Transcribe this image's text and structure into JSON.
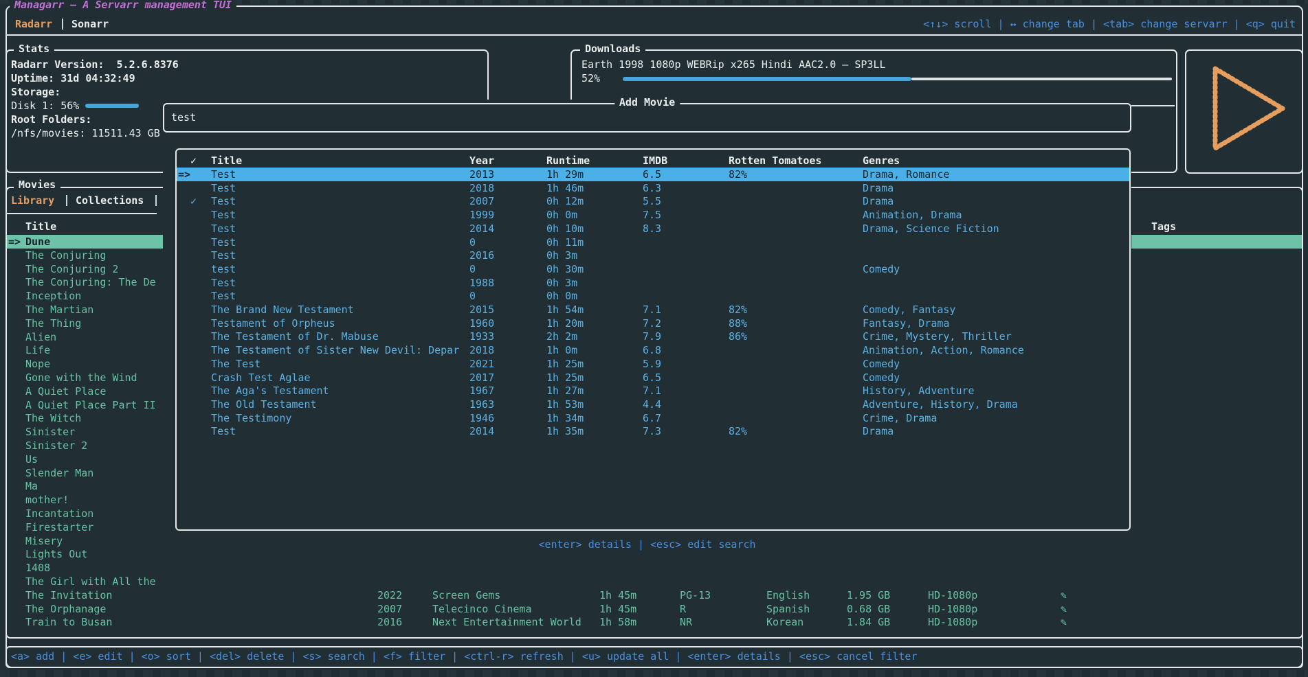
{
  "app": {
    "title": "Managarr — A Servarr management TUI",
    "tabs": {
      "radarr": "Radarr",
      "sonarr": "Sonarr"
    },
    "top_hints": "<↑↓> scroll | ↔ change tab | <tab> change servarr | <q> quit"
  },
  "stats": {
    "title": "Stats",
    "version": "Radarr Version:  5.2.6.8376",
    "uptime": "Uptime: 31d 04:32:49",
    "storage_label": "Storage:",
    "disk_label": "Disk 1: 56%",
    "disk_percent": 56,
    "root_folders_label": "Root Folders:",
    "root_folder": "/nfs/movies: 11511.43 GB"
  },
  "downloads": {
    "title": "Downloads",
    "item": "Earth 1998 1080p WEBRip x265 Hindi AAC2.0 – SP3LL",
    "percent_label": "52%",
    "percent": 52
  },
  "movies_panel": {
    "title": "Movies",
    "tabs": {
      "library": "Library",
      "collections": "Collections"
    },
    "header_title": "Title",
    "header_tags": "Tags",
    "selected_marker": "=>",
    "rows": [
      {
        "title": "Dune",
        "selected": true
      },
      {
        "title": "The Conjuring"
      },
      {
        "title": "The Conjuring 2"
      },
      {
        "title": "The Conjuring: The De"
      },
      {
        "title": "Inception"
      },
      {
        "title": "The Martian"
      },
      {
        "title": "The Thing"
      },
      {
        "title": "Alien"
      },
      {
        "title": "Life"
      },
      {
        "title": "Nope"
      },
      {
        "title": "Gone with the Wind"
      },
      {
        "title": "A Quiet Place"
      },
      {
        "title": "A Quiet Place Part II"
      },
      {
        "title": "The Witch"
      },
      {
        "title": "Sinister"
      },
      {
        "title": "Sinister 2"
      },
      {
        "title": "Us"
      },
      {
        "title": "Slender Man"
      },
      {
        "title": "Ma"
      },
      {
        "title": "mother!"
      },
      {
        "title": "Incantation"
      },
      {
        "title": "Firestarter"
      },
      {
        "title": "Misery"
      },
      {
        "title": "Lights Out"
      },
      {
        "title": "1408"
      },
      {
        "title": "The Girl with All the"
      },
      {
        "title": "The Invitation",
        "details": {
          "year": "2022",
          "studio": "Screen Gems",
          "runtime": "1h 45m",
          "certification": "PG-13",
          "language": "English",
          "size": "1.95 GB",
          "quality": "HD-1080p",
          "monitored": "✎"
        }
      },
      {
        "title": "The Orphanage",
        "details": {
          "year": "2007",
          "studio": "Telecinco Cinema",
          "runtime": "1h 45m",
          "certification": "R",
          "language": "Spanish",
          "size": "0.68 GB",
          "quality": "HD-1080p",
          "monitored": "✎"
        }
      },
      {
        "title": "Train to Busan",
        "details": {
          "year": "2016",
          "studio": "Next Entertainment World",
          "runtime": "1h 58m",
          "certification": "NR",
          "language": "Korean",
          "size": "1.84 GB",
          "quality": "HD-1080p",
          "monitored": "✎"
        }
      }
    ]
  },
  "modal": {
    "title": "Add Movie",
    "search_value": "test",
    "hint": "<enter> details | <esc> edit search",
    "results": {
      "headers": {
        "check": "✓",
        "title": "Title",
        "year": "Year",
        "runtime": "Runtime",
        "imdb": "IMDB",
        "rotten": "Rotten Tomatoes",
        "genres": "Genres"
      },
      "selected_marker": "=>",
      "rows": [
        {
          "selected": true,
          "check": "",
          "title": "Test",
          "year": "2013",
          "runtime": "1h 29m",
          "imdb": "6.5",
          "rotten": "82%",
          "genres": "Drama, Romance"
        },
        {
          "check": "",
          "title": "Test",
          "year": "2018",
          "runtime": "1h 46m",
          "imdb": "6.3",
          "rotten": "",
          "genres": "Drama"
        },
        {
          "check": "✓",
          "title": "Test",
          "year": "2007",
          "runtime": "0h 12m",
          "imdb": "5.5",
          "rotten": "",
          "genres": "Drama"
        },
        {
          "check": "",
          "title": "Test",
          "year": "1999",
          "runtime": "0h 0m",
          "imdb": "7.5",
          "rotten": "",
          "genres": "Animation, Drama"
        },
        {
          "check": "",
          "title": "Test",
          "year": "2014",
          "runtime": "0h 10m",
          "imdb": "8.3",
          "rotten": "",
          "genres": "Drama, Science Fiction"
        },
        {
          "check": "",
          "title": "Test",
          "year": "0",
          "runtime": "0h 11m",
          "imdb": "",
          "rotten": "",
          "genres": ""
        },
        {
          "check": "",
          "title": "Test",
          "year": "2016",
          "runtime": "0h 3m",
          "imdb": "",
          "rotten": "",
          "genres": ""
        },
        {
          "check": "",
          "title": "test",
          "year": "0",
          "runtime": "0h 30m",
          "imdb": "",
          "rotten": "",
          "genres": "Comedy"
        },
        {
          "check": "",
          "title": "Test",
          "year": "1988",
          "runtime": "0h 3m",
          "imdb": "",
          "rotten": "",
          "genres": ""
        },
        {
          "check": "",
          "title": "Test",
          "year": "0",
          "runtime": "0h 0m",
          "imdb": "",
          "rotten": "",
          "genres": ""
        },
        {
          "check": "",
          "title": "The Brand New Testament",
          "year": "2015",
          "runtime": "1h 54m",
          "imdb": "7.1",
          "rotten": "82%",
          "genres": "Comedy, Fantasy"
        },
        {
          "check": "",
          "title": "Testament of Orpheus",
          "year": "1960",
          "runtime": "1h 20m",
          "imdb": "7.2",
          "rotten": "88%",
          "genres": "Fantasy, Drama"
        },
        {
          "check": "",
          "title": "The Testament of Dr. Mabuse",
          "year": "1933",
          "runtime": "2h 2m",
          "imdb": "7.9",
          "rotten": "86%",
          "genres": "Crime, Mystery, Thriller"
        },
        {
          "check": "",
          "title": "The Testament of Sister New Devil: Depar",
          "year": "2018",
          "runtime": "1h 0m",
          "imdb": "6.8",
          "rotten": "",
          "genres": "Animation, Action, Romance"
        },
        {
          "check": "",
          "title": "The Test",
          "year": "2021",
          "runtime": "1h 25m",
          "imdb": "5.9",
          "rotten": "",
          "genres": "Comedy"
        },
        {
          "check": "",
          "title": "Crash Test Aglae",
          "year": "2017",
          "runtime": "1h 25m",
          "imdb": "6.5",
          "rotten": "",
          "genres": "Comedy"
        },
        {
          "check": "",
          "title": "The Aga's Testament",
          "year": "1967",
          "runtime": "1h 27m",
          "imdb": "7.1",
          "rotten": "",
          "genres": "History, Adventure"
        },
        {
          "check": "",
          "title": "The Old Testament",
          "year": "1963",
          "runtime": "1h 53m",
          "imdb": "4.4",
          "rotten": "",
          "genres": "Adventure, History, Drama"
        },
        {
          "check": "",
          "title": "The Testimony",
          "year": "1946",
          "runtime": "1h 34m",
          "imdb": "6.7",
          "rotten": "",
          "genres": "Crime, Drama"
        },
        {
          "check": "",
          "title": "Test",
          "year": "2014",
          "runtime": "1h 35m",
          "imdb": "7.3",
          "rotten": "82%",
          "genres": "Drama"
        }
      ]
    }
  },
  "footer": {
    "hints": "<a> add | <e> edit | <o> sort | <del> delete | <s> search | <f> filter | <ctrl-r> refresh | <u> update all | <enter> details | <esc> cancel filter"
  },
  "colors": {
    "background": "#212f35",
    "border": "#e4e8e8",
    "accent_orange": "#e59e5e",
    "title_purple": "#c272d4",
    "hint_blue": "#4a8fdf",
    "row_blue": "#5cb1e3",
    "teal": "#67c2a4",
    "selected_modal_bg": "#4cb0e8",
    "selected_library_bg": "#6cc3a7",
    "progress_blue": "#49a5d9"
  }
}
